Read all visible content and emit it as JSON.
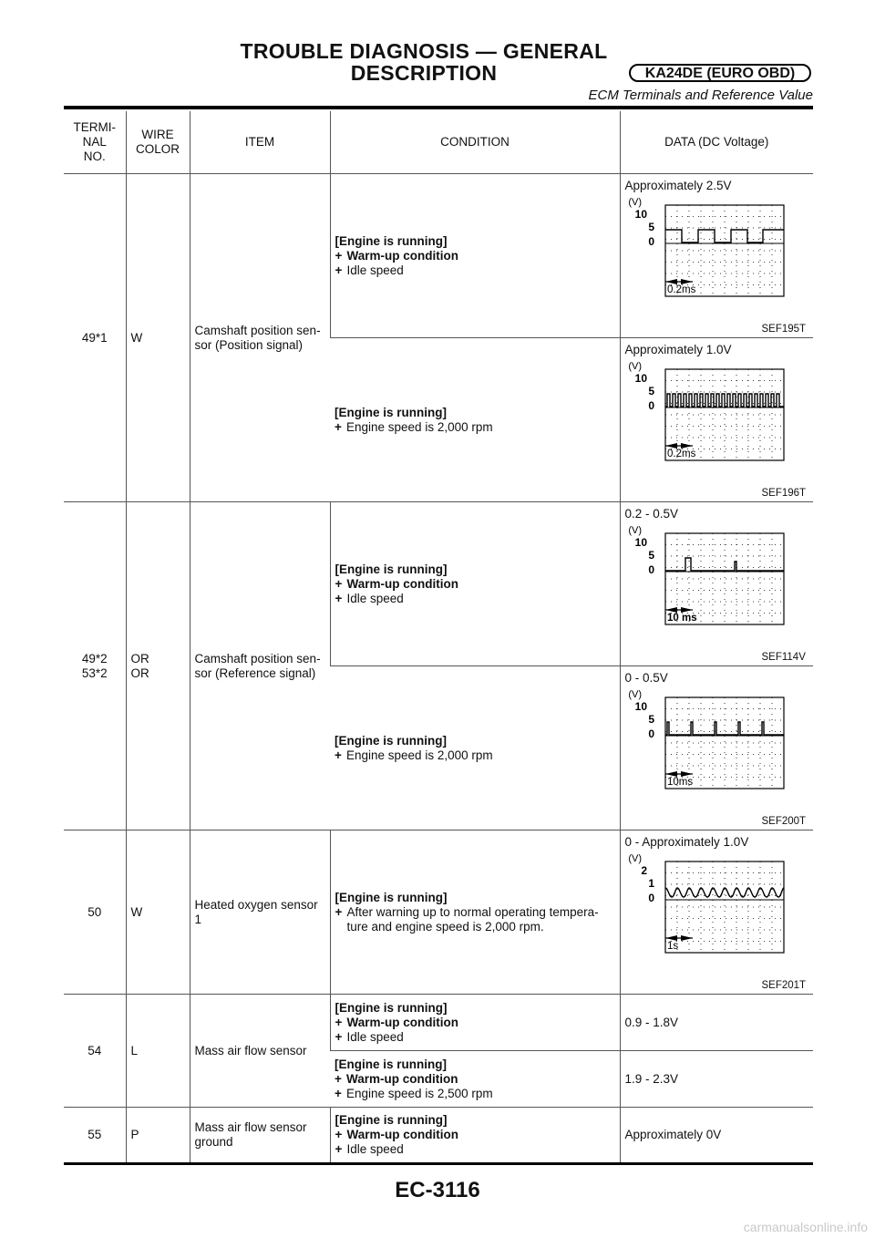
{
  "header": {
    "title_line1": "TROUBLE DIAGNOSIS — GENERAL",
    "title_line2": "DESCRIPTION",
    "badge": "KA24DE (EURO OBD)",
    "subtitle": "ECM Terminals and Reference Value"
  },
  "table": {
    "headers": {
      "terminal": [
        "TERMI-",
        "NAL",
        "NO."
      ],
      "wire": [
        "WIRE",
        "COLOR"
      ],
      "item": "ITEM",
      "condition": "CONDITION",
      "data": "DATA (DC Voltage)"
    },
    "rows": [
      {
        "terminal": [
          "49*1"
        ],
        "wire": [
          "W"
        ],
        "item": [
          "Camshaft position sen-",
          "sor (Position signal)"
        ],
        "sub": [
          {
            "cond_head": "[Engine is running]",
            "cond_bold": [
              "Warm-up condition"
            ],
            "cond_plain": [
              "Idle speed"
            ],
            "data": "Approximately 2.5V",
            "scope": {
              "scale": [
                "(V)",
                "10",
                "5",
                "0"
              ],
              "time": "0.2ms",
              "code": "SEF195T",
              "signal": "position-idle"
            }
          },
          {
            "cond_head": "[Engine is running]",
            "cond_bold": [],
            "cond_plain": [
              "Engine speed is 2,000 rpm"
            ],
            "data": "Approximately 1.0V",
            "scope": {
              "scale": [
                "(V)",
                "10",
                "5",
                "0"
              ],
              "time": "0.2ms",
              "code": "SEF196T",
              "signal": "position-2000"
            }
          }
        ]
      },
      {
        "terminal": [
          "49*2",
          "53*2"
        ],
        "wire": [
          "OR",
          "OR"
        ],
        "item": [
          "Camshaft position sen-",
          "sor (Reference signal)"
        ],
        "sub": [
          {
            "cond_head": "[Engine is running]",
            "cond_bold": [
              "Warm-up condition"
            ],
            "cond_plain": [
              "Idle speed"
            ],
            "data": "0.2 - 0.5V",
            "scope": {
              "scale": [
                "(V)",
                "10",
                "5",
                "0"
              ],
              "time": "10 ms",
              "code": "SEF114V",
              "signal": "reference-idle"
            }
          },
          {
            "cond_head": "[Engine is running]",
            "cond_bold": [],
            "cond_plain": [
              "Engine speed is 2,000 rpm"
            ],
            "data": "0 - 0.5V",
            "scope": {
              "scale": [
                "(V)",
                "10",
                "5",
                "0"
              ],
              "time": "10ms",
              "code": "SEF200T",
              "signal": "reference-2000"
            }
          }
        ]
      },
      {
        "terminal": [
          "50"
        ],
        "wire": [
          "W"
        ],
        "item": [
          "Heated oxygen sensor",
          "1"
        ],
        "sub": [
          {
            "cond_head": "[Engine is running]",
            "cond_bold": [],
            "cond_plain": [
              "After warning up to normal operating tempera-",
              "ture and engine speed is 2,000 rpm."
            ],
            "data": "0 - Approximately 1.0V",
            "scope": {
              "scale": [
                "(V)",
                "2",
                "1",
                "0"
              ],
              "time": "1s",
              "code": "SEF201T",
              "signal": "oxygen"
            }
          }
        ]
      },
      {
        "terminal": [
          "54"
        ],
        "wire": [
          "L"
        ],
        "item": [
          "Mass air flow sensor"
        ],
        "sub": [
          {
            "cond_head": "[Engine is running]",
            "cond_bold": [
              "Warm-up condition"
            ],
            "cond_plain": [
              "Idle speed"
            ],
            "data": "0.9 - 1.8V"
          },
          {
            "cond_head": "[Engine is running]",
            "cond_bold": [
              "Warm-up condition"
            ],
            "cond_plain": [
              "Engine speed is 2,500 rpm"
            ],
            "data": "1.9 - 2.3V"
          }
        ]
      },
      {
        "terminal": [
          "55"
        ],
        "wire": [
          "P"
        ],
        "item": [
          "Mass air flow sensor",
          "ground"
        ],
        "sub": [
          {
            "cond_head": "[Engine is running]",
            "cond_bold": [
              "Warm-up condition"
            ],
            "cond_plain": [
              "Idle speed"
            ],
            "data": "Approximately 0V"
          }
        ]
      }
    ]
  },
  "footer": {
    "page_code": "EC-3116"
  },
  "watermark": "carmanualsonline.info"
}
